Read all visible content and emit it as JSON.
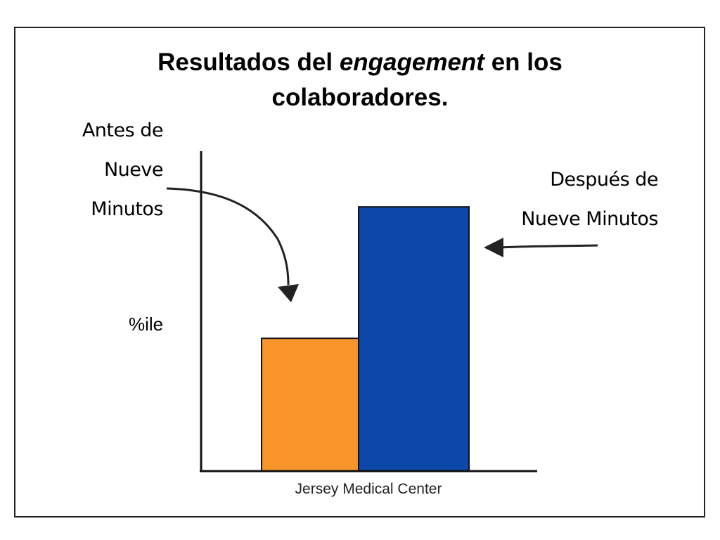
{
  "chart_data": {
    "type": "bar",
    "title_parts": [
      "Resultados del ",
      "engagement",
      " en los",
      "colaboradores."
    ],
    "categories": [
      "Jersey Medical Center"
    ],
    "series": [
      {
        "name": "Antes de Nueve Minutos",
        "values": [
          41.5
        ],
        "color": "#F7952B"
      },
      {
        "name": "Después de Nueve Minutos",
        "values": [
          82.6
        ],
        "color": "#0D48A8"
      }
    ],
    "xlabel": "Jersey Medical Center",
    "ylabel": "%ile",
    "ylim": [
      0,
      100
    ],
    "grid": false,
    "annotations": {
      "before": [
        "Antes de",
        "Nueve",
        "Minutos"
      ],
      "after": [
        "Después de",
        "Nueve Minutos"
      ]
    }
  }
}
